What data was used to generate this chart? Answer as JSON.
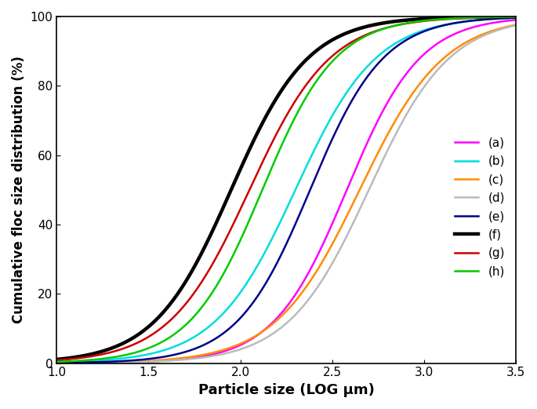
{
  "title": "",
  "xlabel": "Particle size (LOG μm)",
  "ylabel": "Cumulative floc size distribution (%)",
  "xlim": [
    1.0,
    3.5
  ],
  "ylim": [
    0,
    100
  ],
  "xticks": [
    1.0,
    1.5,
    2.0,
    2.5,
    3.0,
    3.5
  ],
  "yticks": [
    0,
    20,
    40,
    60,
    80,
    100
  ],
  "curves": [
    {
      "label": "(a)",
      "color": "#FF00FF",
      "lw": 1.8,
      "mid": 2.58,
      "scale": 0.2
    },
    {
      "label": "(b)",
      "color": "#00DDDD",
      "lw": 1.8,
      "mid": 2.3,
      "scale": 0.22
    },
    {
      "label": "(c)",
      "color": "#FF8C00",
      "lw": 1.8,
      "mid": 2.65,
      "scale": 0.23
    },
    {
      "label": "(d)",
      "color": "#BBBBBB",
      "lw": 1.8,
      "mid": 2.7,
      "scale": 0.22
    },
    {
      "label": "(e)",
      "color": "#00008B",
      "lw": 1.8,
      "mid": 2.38,
      "scale": 0.2
    },
    {
      "label": "(f)",
      "color": "#000000",
      "lw": 3.2,
      "mid": 1.95,
      "scale": 0.21
    },
    {
      "label": "(g)",
      "color": "#CC0000",
      "lw": 1.8,
      "mid": 2.05,
      "scale": 0.22
    },
    {
      "label": "(h)",
      "color": "#00CC00",
      "lw": 1.8,
      "mid": 2.12,
      "scale": 0.2
    }
  ],
  "legend_loc": "center right",
  "background_color": "#FFFFFF",
  "xlabel_fontsize": 13,
  "ylabel_fontsize": 12,
  "tick_fontsize": 11,
  "legend_fontsize": 11
}
